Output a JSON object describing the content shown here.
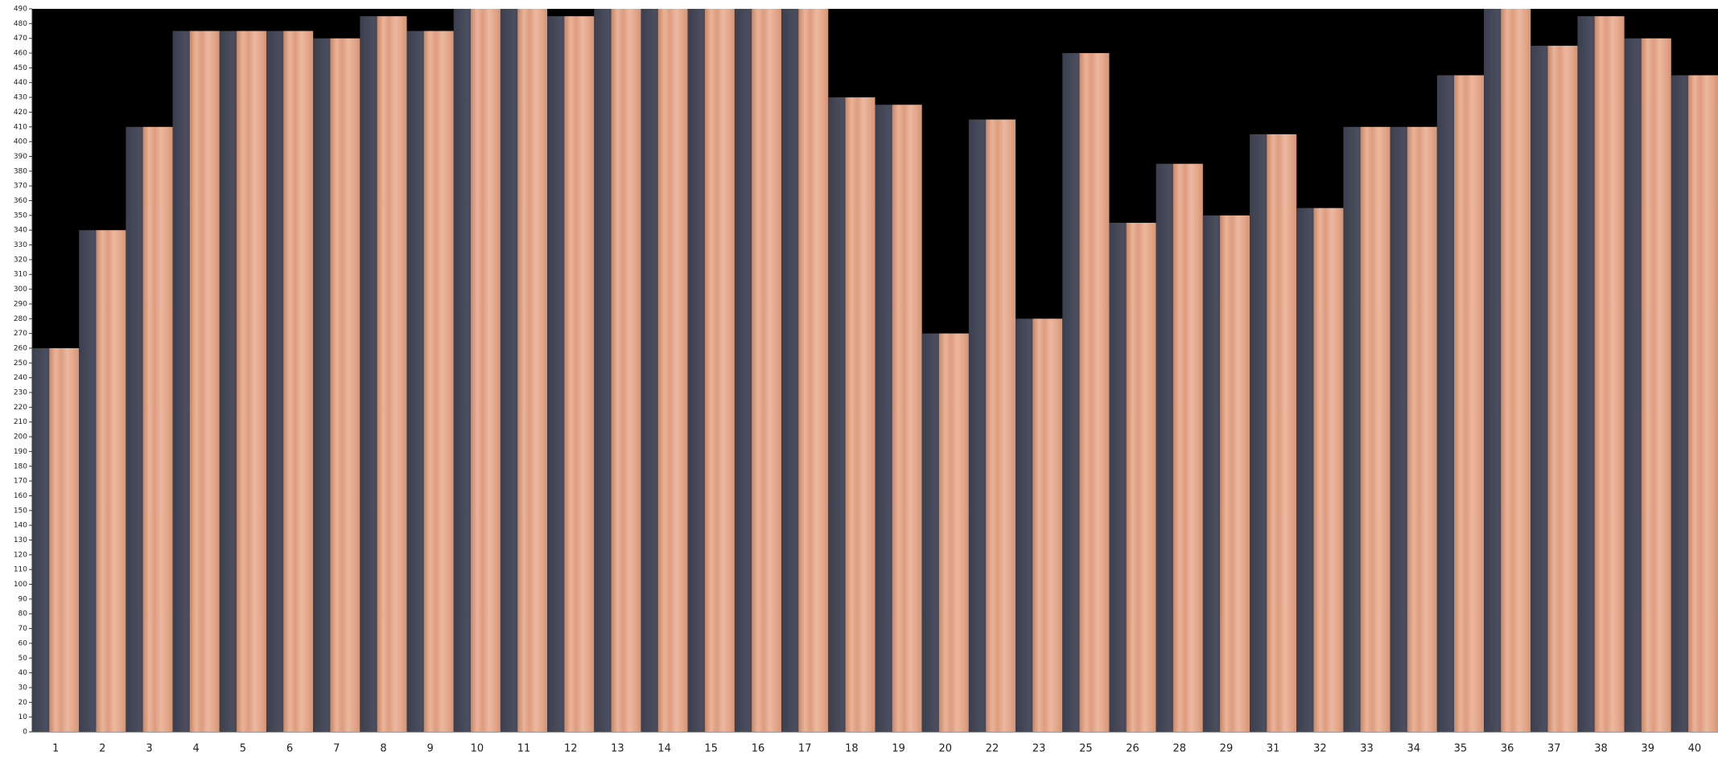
{
  "chart_data": {
    "type": "bar",
    "categories": [
      "1",
      "2",
      "3",
      "4",
      "5",
      "6",
      "7",
      "8",
      "9",
      "10",
      "11",
      "12",
      "13",
      "14",
      "15",
      "16",
      "17",
      "18",
      "19",
      "20",
      "22",
      "23",
      "25",
      "26",
      "28",
      "29",
      "31",
      "32",
      "33",
      "34",
      "35",
      "36",
      "37",
      "38",
      "39",
      "40"
    ],
    "values": [
      260,
      340,
      410,
      475,
      475,
      475,
      470,
      485,
      475,
      490,
      490,
      485,
      490,
      490,
      490,
      490,
      490,
      430,
      425,
      270,
      415,
      280,
      460,
      345,
      385,
      350,
      405,
      355,
      410,
      410,
      445,
      490,
      465,
      485,
      470,
      445
    ],
    "ylim": [
      0,
      490
    ],
    "yticks": [
      0,
      10,
      20,
      30,
      40,
      50,
      60,
      70,
      80,
      90,
      100,
      110,
      120,
      130,
      140,
      150,
      160,
      170,
      180,
      190,
      200,
      210,
      220,
      230,
      240,
      250,
      260,
      270,
      280,
      290,
      300,
      310,
      320,
      330,
      340,
      350,
      360,
      370,
      380,
      390,
      400,
      410,
      420,
      430,
      440,
      450,
      460,
      470,
      480,
      490
    ]
  }
}
